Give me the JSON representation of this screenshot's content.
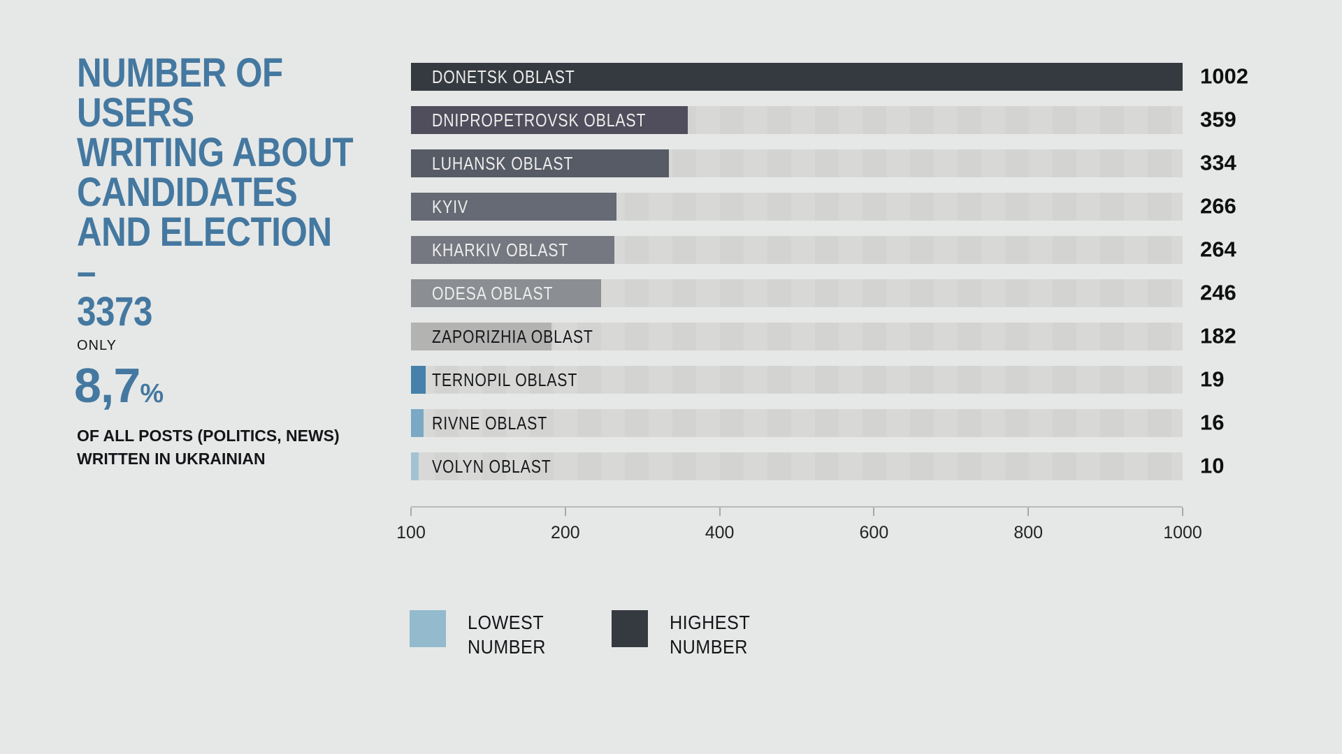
{
  "panel": {
    "title": "NUMBER OF USERS\nWRITING ABOUT\nCANDIDATES\nAND ELECTION –\n3373",
    "only_label": "ONLY",
    "percent_value": "8,7",
    "percent_sign": "%",
    "subtitle": "OF ALL POSTS (POLITICS, NEWS)\nWRITTEN IN UKRAINIAN",
    "accent_color": "#4478a0",
    "background_color": "#e6e8e7"
  },
  "chart_data": {
    "type": "bar",
    "orientation": "horizontal",
    "title": "NUMBER OF USERS WRITING ABOUT CANDIDATES AND ELECTION – 3373",
    "total": 3373,
    "xlim": [
      0,
      1000
    ],
    "xticks": [
      "100",
      "200",
      "400",
      "600",
      "800",
      "1000"
    ],
    "grid": false,
    "track_color": "#d7d8d6",
    "categories": [
      "DONETSK OBLAST",
      "DNIPROPETROVSK OBLAST",
      "LUHANSK OBLAST",
      "KYIV",
      "KHARKIV OBLAST",
      "ODESA OBLAST",
      "ZAPORIZHIA OBLAST",
      "TERNOPIL OBLAST",
      "RIVNE OBLAST",
      "VOLYN OBLAST"
    ],
    "values": [
      1002,
      359,
      334,
      266,
      264,
      246,
      182,
      19,
      16,
      10
    ],
    "rows": [
      {
        "label": "DONETSK OBLAST",
        "value": "1002",
        "bar_color": "#353a40",
        "label_color": "#ededec"
      },
      {
        "label": "DNIPROPETROVSK OBLAST",
        "value": "359",
        "bar_color": "#504e5c",
        "label_color": "#ededec"
      },
      {
        "label": "LUHANSK OBLAST",
        "value": "334",
        "bar_color": "#575b66",
        "label_color": "#ededec"
      },
      {
        "label": "KYIV",
        "value": "266",
        "bar_color": "#666a74",
        "label_color": "#ededec"
      },
      {
        "label": "KHARKIV OBLAST",
        "value": "264",
        "bar_color": "#757880",
        "label_color": "#ededec"
      },
      {
        "label": "ODESA OBLAST",
        "value": "246",
        "bar_color": "#8b8e93",
        "label_color": "#ededec"
      },
      {
        "label": "ZAPORIZHIA OBLAST",
        "value": "182",
        "bar_color": "#b3b4b2",
        "label_color": "#17181a"
      },
      {
        "label": "TERNOPIL OBLAST",
        "value": "19",
        "bar_color": "#4681ab",
        "label_color": "#17181a"
      },
      {
        "label": "RIVNE OBLAST",
        "value": "16",
        "bar_color": "#7aa8c5",
        "label_color": "#17181a"
      },
      {
        "label": "VOLYN OBLAST",
        "value": "10",
        "bar_color": "#a3c3d4",
        "label_color": "#17181a"
      }
    ],
    "legend_position": "bottom",
    "legend": [
      {
        "label": "LOWEST\nNUMBER",
        "color": "#93bacd"
      },
      {
        "label": "HIGHEST\nNUMBER",
        "color": "#353a40"
      }
    ]
  }
}
